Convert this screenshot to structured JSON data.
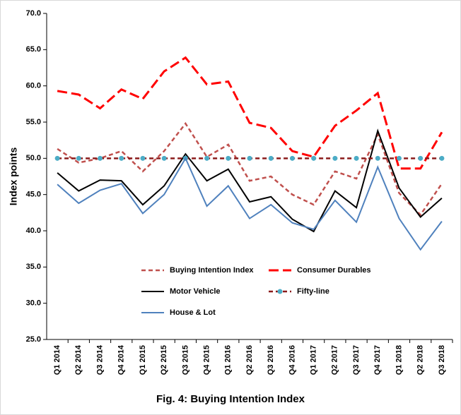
{
  "chart_data": {
    "type": "line",
    "title": "Fig. 4: Buying Intention  Index",
    "y_label": "Index points",
    "categories": [
      "Q1 2014",
      "Q2 2014",
      "Q3 2014",
      "Q4 2014",
      "Q1 2015",
      "Q2 2015",
      "Q3 2015",
      "Q4 2015",
      "Q1 2016",
      "Q2 2016",
      "Q3 2016",
      "Q4 2016",
      "Q1 2017",
      "Q2 2017",
      "Q3 2017",
      "Q4 2017",
      "Q1 2018",
      "Q2 2018",
      "Q3 2018"
    ],
    "ylim": [
      25,
      70
    ],
    "yticks": [
      {
        "value": 25,
        "label": "25.0"
      },
      {
        "value": 30,
        "label": "30.0"
      },
      {
        "value": 35,
        "label": "35.0"
      },
      {
        "value": 40,
        "label": "40.0"
      },
      {
        "value": 45,
        "label": "45.0"
      },
      {
        "value": 50,
        "label": "50.0"
      },
      {
        "value": 55,
        "label": "55.0"
      },
      {
        "value": 60,
        "label": "60.0"
      },
      {
        "value": 65,
        "label": "65.0"
      },
      {
        "value": 70,
        "label": "70.0"
      }
    ],
    "grid": false,
    "series": [
      {
        "name": "Buying Intention Index",
        "color": "#c0504d",
        "line_style": "dashed",
        "values": [
          51.3,
          49.4,
          50.0,
          51.0,
          48.2,
          51.0,
          54.8,
          50.2,
          51.9,
          46.9,
          47.5,
          45.0,
          43.6,
          48.2,
          47.2,
          53.3,
          45.2,
          42.2,
          46.5
        ]
      },
      {
        "name": "Consumer Durables",
        "color": "#ff0000",
        "line_style": "long-dashed",
        "values": [
          59.3,
          58.8,
          56.9,
          59.5,
          58.2,
          62.0,
          63.9,
          60.2,
          60.6,
          54.9,
          54.2,
          51.0,
          50.2,
          54.5,
          56.6,
          59.0,
          48.6,
          48.6,
          53.6
        ]
      },
      {
        "name": "Motor Vehicle",
        "color": "#000000",
        "line_style": "solid",
        "values": [
          48.0,
          45.5,
          47.0,
          46.9,
          43.6,
          46.2,
          50.6,
          46.9,
          48.5,
          44.0,
          44.7,
          41.6,
          39.9,
          45.5,
          43.2,
          53.8,
          45.9,
          41.9,
          44.5
        ]
      },
      {
        "name": "Fifty-line",
        "color": "#8b1a1a",
        "marker_color": "#4bacc6",
        "line_style": "dashed",
        "marker": "circle",
        "values": [
          50,
          50,
          50,
          50,
          50,
          50,
          50,
          50,
          50,
          50,
          50,
          50,
          50,
          50,
          50,
          50,
          50,
          50,
          50
        ]
      },
      {
        "name": "House & Lot",
        "color": "#4f81bd",
        "line_style": "solid",
        "values": [
          46.4,
          43.8,
          45.6,
          46.5,
          42.4,
          45.0,
          50.0,
          43.4,
          46.2,
          41.7,
          43.6,
          41.1,
          40.2,
          44.2,
          41.2,
          48.8,
          41.7,
          37.4,
          41.3
        ]
      }
    ]
  }
}
